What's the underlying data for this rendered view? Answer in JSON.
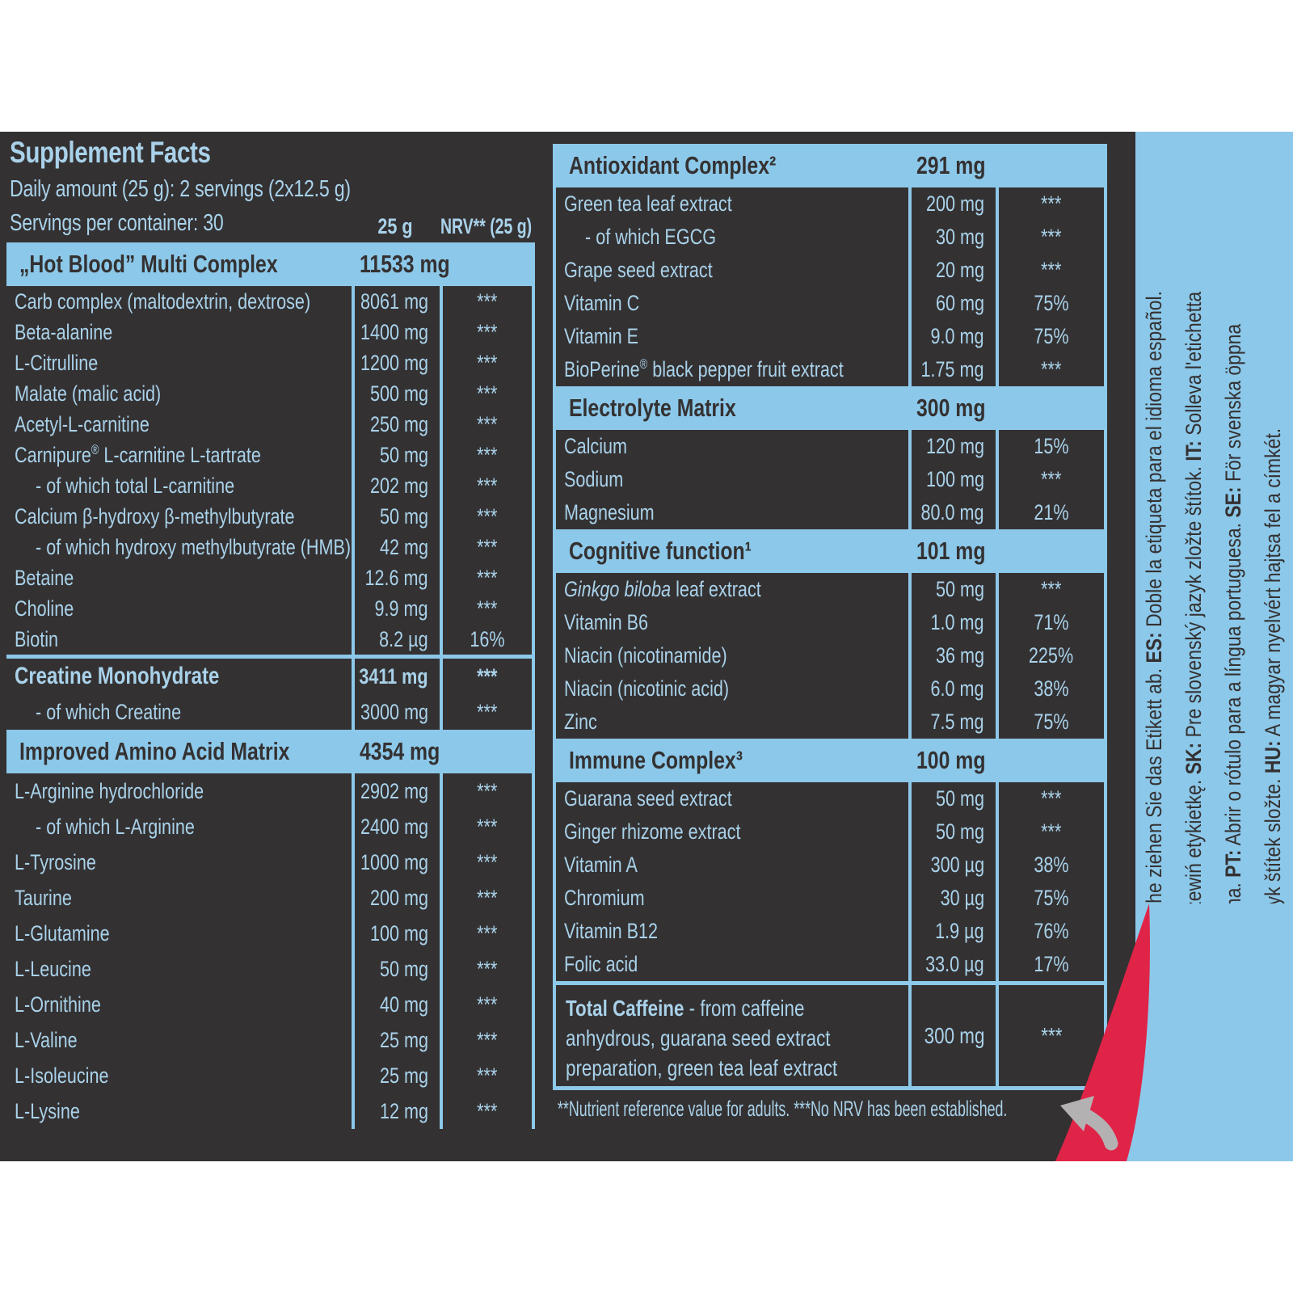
{
  "colors": {
    "panel_bg": "#343132",
    "accent_blue": "#8cc8e9",
    "text_blue": "#a9d2ea",
    "curl_red": "#e02448",
    "arrow_gray": "#b4b1b2",
    "page_bg": "#ffffff"
  },
  "header": {
    "title": "Supplement Facts",
    "daily_amount": "Daily amount (25 g): 2 servings (2x12.5 g)",
    "servings": "Servings per container: 30",
    "col_amount": "25 g",
    "col_nrv": "NRV** (25 g)"
  },
  "left_table": {
    "sections": [
      {
        "style": "band",
        "title": "„Hot Blood” Multi Complex",
        "amount": "11533 mg",
        "rows": [
          {
            "label": "Carb complex (maltodextrin, dextrose)",
            "amount": "8061 mg",
            "nrv": "***"
          },
          {
            "label": "Beta-alanine",
            "amount": "1400 mg",
            "nrv": "***"
          },
          {
            "label": "L-Citrulline",
            "amount": "1200 mg",
            "nrv": "***"
          },
          {
            "label": "Malate (malic acid)",
            "amount": "500 mg",
            "nrv": "***"
          },
          {
            "label": "Acetyl-L-carnitine",
            "amount": "250 mg",
            "nrv": "***"
          },
          {
            "label": "Carnipure® L-carnitine L-tartrate",
            "amount": "50 mg",
            "nrv": "***"
          },
          {
            "label": "- of which total L-carnitine",
            "amount": "202 mg",
            "nrv": "***",
            "indent": true
          },
          {
            "label": "Calcium β-hydroxy β-methylbutyrate",
            "amount": "50 mg",
            "nrv": "***"
          },
          {
            "label": "- of which hydroxy methylbutyrate (HMB)",
            "amount": "42 mg",
            "nrv": "***",
            "indent": true
          },
          {
            "label": "Betaine",
            "amount": "12.6 mg",
            "nrv": "***"
          },
          {
            "label": "Choline",
            "amount": "9.9 mg",
            "nrv": "***"
          },
          {
            "label": "Biotin",
            "amount": "8.2 µg",
            "nrv": "16%"
          }
        ]
      },
      {
        "style": "rule-bold",
        "title": "Creatine Monohydrate",
        "amount": "3411 mg",
        "nrv": "***",
        "rows": [
          {
            "label": "- of which Creatine",
            "amount": "3000 mg",
            "nrv": "***",
            "indent": true
          }
        ]
      },
      {
        "style": "band",
        "title": "Improved Amino Acid Matrix",
        "amount": "4354 mg",
        "rows": [
          {
            "label": "L-Arginine hydrochloride",
            "amount": "2902 mg",
            "nrv": "***"
          },
          {
            "label": "- of which L-Arginine",
            "amount": "2400 mg",
            "nrv": "***",
            "indent": true
          },
          {
            "label": "L-Tyrosine",
            "amount": "1000 mg",
            "nrv": "***"
          },
          {
            "label": "Taurine",
            "amount": "200 mg",
            "nrv": "***"
          },
          {
            "label": "L-Glutamine",
            "amount": "100 mg",
            "nrv": "***"
          },
          {
            "label": "L-Leucine",
            "amount": "50 mg",
            "nrv": "***"
          },
          {
            "label": "L-Ornithine",
            "amount": "40 mg",
            "nrv": "***"
          },
          {
            "label": "L-Valine",
            "amount": "25 mg",
            "nrv": "***"
          },
          {
            "label": "L-Isoleucine",
            "amount": "25 mg",
            "nrv": "***"
          },
          {
            "label": "L-Lysine",
            "amount": "12 mg",
            "nrv": "***"
          }
        ]
      }
    ]
  },
  "right_table": {
    "sections": [
      {
        "title": "Antioxidant Complex²",
        "amount": "291 mg",
        "rows": [
          {
            "label": "Green tea leaf extract",
            "amount": "200 mg",
            "nrv": "***"
          },
          {
            "label": "- of which EGCG",
            "amount": "30 mg",
            "nrv": "***",
            "indent": true
          },
          {
            "label": "Grape seed extract",
            "amount": "20 mg",
            "nrv": "***"
          },
          {
            "label": "Vitamin C",
            "amount": "60 mg",
            "nrv": "75%"
          },
          {
            "label": "Vitamin E",
            "amount": "9.0 mg",
            "nrv": "75%"
          },
          {
            "label": "BioPerine® black pepper fruit extract",
            "amount": "1.75 mg",
            "nrv": "***"
          }
        ]
      },
      {
        "title": "Electrolyte Matrix",
        "amount": "300 mg",
        "rows": [
          {
            "label": "Calcium",
            "amount": "120 mg",
            "nrv": "15%"
          },
          {
            "label": "Sodium",
            "amount": "100 mg",
            "nrv": "***"
          },
          {
            "label": "Magnesium",
            "amount": "80.0 mg",
            "nrv": "21%"
          }
        ]
      },
      {
        "title": "Cognitive function¹",
        "amount": "101 mg",
        "rows": [
          {
            "label": "Ginkgo biloba leaf extract",
            "em": "Ginkgo biloba",
            "amount": "50 mg",
            "nrv": "***"
          },
          {
            "label": "Vitamin B6",
            "amount": "1.0 mg",
            "nrv": "71%"
          },
          {
            "label": "Niacin (nicotinamide)",
            "amount": "36 mg",
            "nrv": "225%"
          },
          {
            "label": "Niacin (nicotinic acid)",
            "amount": "6.0 mg",
            "nrv": "38%"
          },
          {
            "label": "Zinc",
            "amount": "7.5 mg",
            "nrv": "75%"
          }
        ]
      },
      {
        "title": "Immune Complex³",
        "amount": "100 mg",
        "rows": [
          {
            "label": "Guarana seed extract",
            "amount": "50 mg",
            "nrv": "***"
          },
          {
            "label": "Ginger rhizome extract",
            "amount": "50 mg",
            "nrv": "***"
          },
          {
            "label": "Vitamin A",
            "amount": "300 µg",
            "nrv": "38%"
          },
          {
            "label": "Chromium",
            "amount": "30 µg",
            "nrv": "75%"
          },
          {
            "label": "Vitamin B12",
            "amount": "1.9 µg",
            "nrv": "76%"
          },
          {
            "label": "Folic acid",
            "amount": "33.0 µg",
            "nrv": "17%"
          }
        ]
      }
    ],
    "caffeine": {
      "bold": "Total Caffeine",
      "lines": [
        "- from caffeine",
        "anhydrous, guarana seed extract",
        "preparation, green tea leaf extract"
      ],
      "amount": "300 mg",
      "nrv": "***"
    },
    "footnote": "**Nutrient reference value for adults. ***No NRV has been established."
  },
  "sidebar": {
    "lines": [
      "DE: Für die deutsche Sprache ziehen Sie das Etikett ab. ES: Doble la etiqueta para el idioma español.",
      "PL: Do języka polskiego przewiń etykietkę. SK: Pre slovenský jazyk zložte štítok. IT: Solleva l'etichetta",
      "per scegliere la lingua italiana. PT: Abrir o rótulo para a língua portuguesa. SE: För svenska öppna",
      "etiketten. CZ: Pro český jazyk štítek složte. HU: A magyar nyelvért hajtsa fel a címkét."
    ]
  }
}
